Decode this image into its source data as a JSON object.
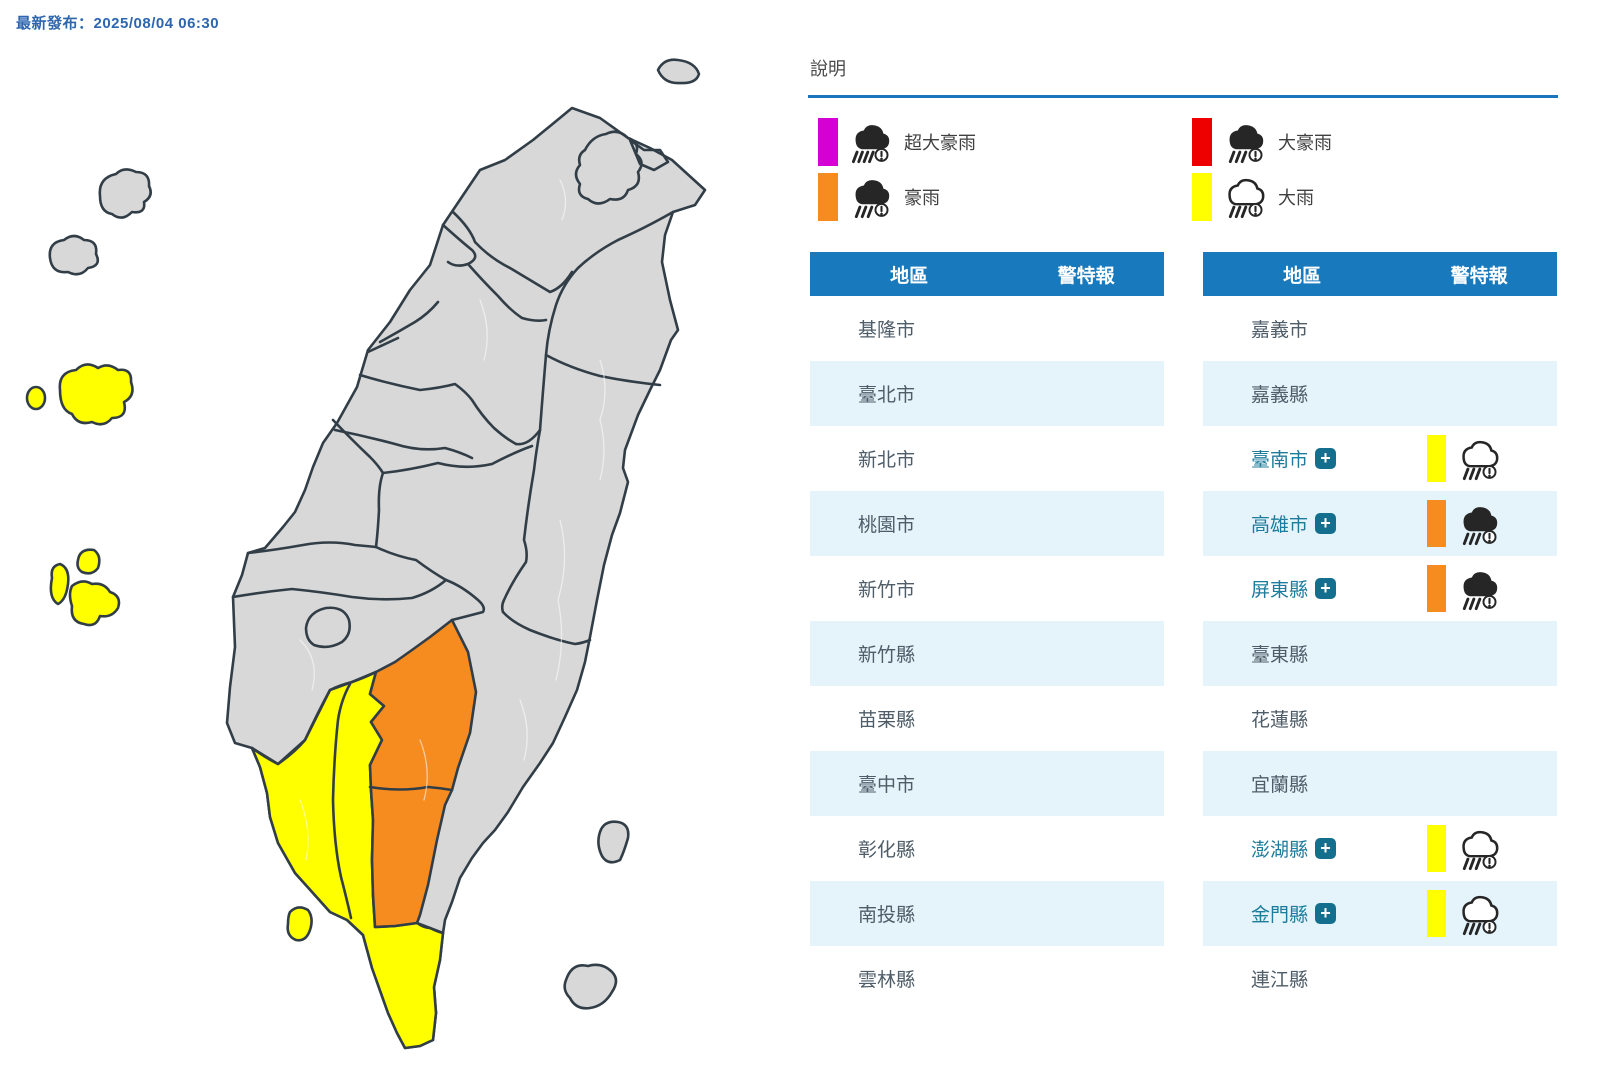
{
  "meta": {
    "published_text": "最新發布：2025/08/04 06:30",
    "published_label": "最新發布",
    "published_datetime": "2025/08/04 06:30"
  },
  "legend": {
    "title": "說明",
    "items": [
      {
        "label": "超大豪雨",
        "color": "#d400d4",
        "icon": "storm-cloud-filled-heavy",
        "col": 0,
        "row": 0
      },
      {
        "label": "大豪雨",
        "color": "#ee0000",
        "icon": "storm-cloud-filled",
        "col": 1,
        "row": 0
      },
      {
        "label": "豪雨",
        "color": "#f68b1f",
        "icon": "storm-cloud-filled",
        "col": 0,
        "row": 1
      },
      {
        "label": "大雨",
        "color": "#ffff00",
        "icon": "rain-cloud-outline",
        "col": 1,
        "row": 1
      }
    ]
  },
  "icons": {
    "expand": "+"
  },
  "tables": {
    "headers": {
      "region": "地區",
      "warning": "警特報"
    },
    "left": {
      "rows": [
        {
          "name": "基隆市"
        },
        {
          "name": "臺北市"
        },
        {
          "name": "新北市"
        },
        {
          "name": "桃園市"
        },
        {
          "name": "新竹市"
        },
        {
          "name": "新竹縣"
        },
        {
          "name": "苗栗縣"
        },
        {
          "name": "臺中市"
        },
        {
          "name": "彰化縣"
        },
        {
          "name": "南投縣"
        },
        {
          "name": "雲林縣"
        }
      ]
    },
    "right": {
      "rows": [
        {
          "name": "嘉義市"
        },
        {
          "name": "嘉義縣"
        },
        {
          "name": "臺南市",
          "expandable": true,
          "warning": {
            "level": "大雨",
            "color": "#ffff00",
            "icon": "rain-cloud-outline"
          }
        },
        {
          "name": "高雄市",
          "expandable": true,
          "warning": {
            "level": "豪雨",
            "color": "#f68b1f",
            "icon": "storm-cloud-filled"
          }
        },
        {
          "name": "屏東縣",
          "expandable": true,
          "warning": {
            "level": "豪雨",
            "color": "#f68b1f",
            "icon": "storm-cloud-filled"
          }
        },
        {
          "name": "臺東縣"
        },
        {
          "name": "花蓮縣"
        },
        {
          "name": "宜蘭縣"
        },
        {
          "name": "澎湖縣",
          "expandable": true,
          "warning": {
            "level": "大雨",
            "color": "#ffff00",
            "icon": "rain-cloud-outline"
          }
        },
        {
          "name": "金門縣",
          "expandable": true,
          "warning": {
            "level": "大雨",
            "color": "#ffff00",
            "icon": "rain-cloud-outline"
          }
        },
        {
          "name": "連江縣"
        }
      ]
    }
  },
  "map": {
    "colors": {
      "land": "#d8d8d8",
      "border": "#323e47",
      "township_line": "#ffffff",
      "heavy_rain_advisory_yellow": "#ffff00",
      "torrential_rain_orange": "#f68b1f"
    },
    "highlighted_areas": [
      {
        "area": "臺南市",
        "level": "大雨",
        "color": "#ffff00"
      },
      {
        "area": "高雄市",
        "level": "豪雨",
        "color": "#f68b1f"
      },
      {
        "area": "屏東縣",
        "level": "豪雨",
        "color": "#f68b1f"
      },
      {
        "area": "澎湖縣",
        "level": "大雨",
        "color": "#ffff00"
      },
      {
        "area": "金門縣",
        "level": "大雨",
        "color": "#ffff00"
      }
    ]
  }
}
